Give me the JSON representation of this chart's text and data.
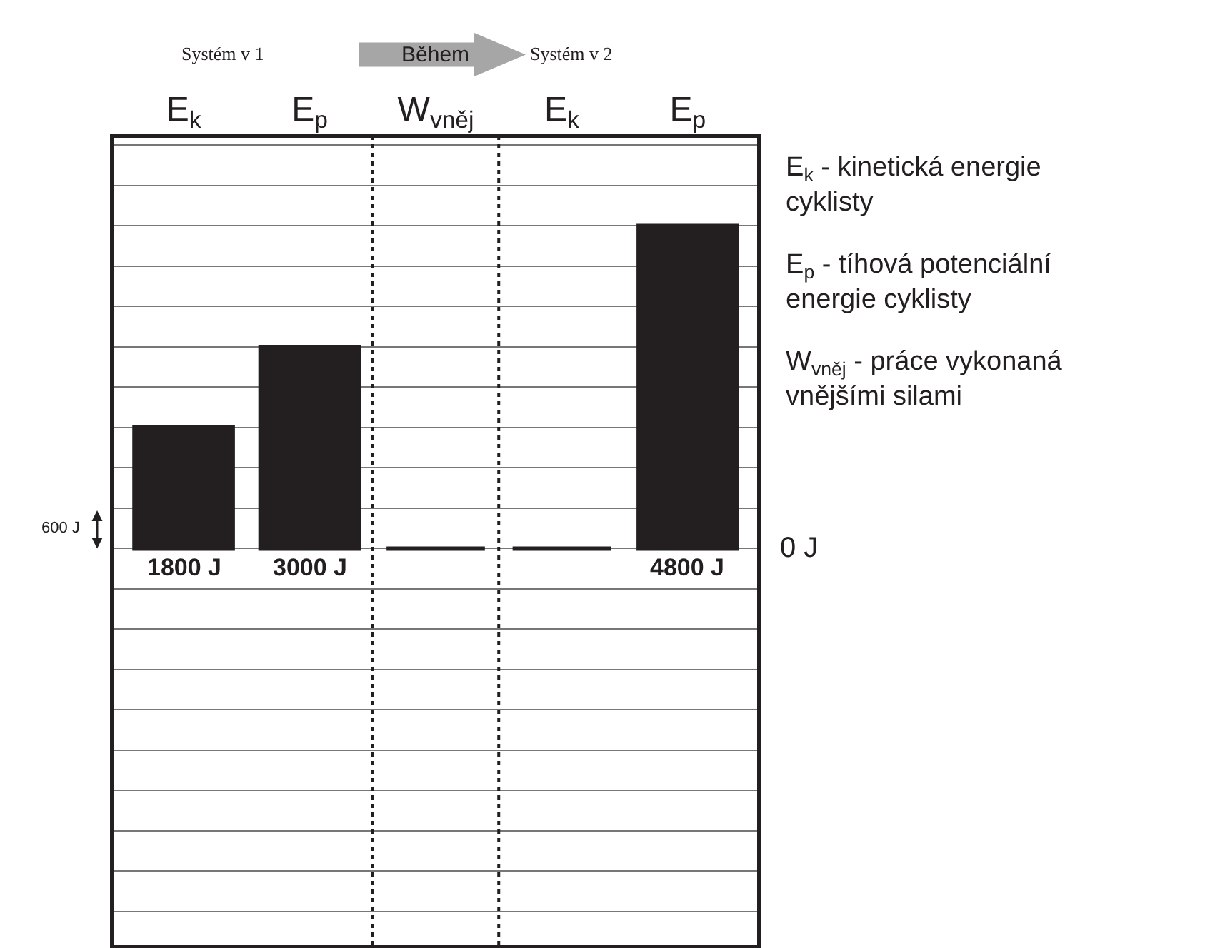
{
  "chart_data": {
    "type": "bar",
    "categories": [
      "E$_{k}$",
      "E$_{p}$",
      "W$_{vněj}$",
      "E$_{k}$",
      "E$_{p}$"
    ],
    "values": [
      1800,
      3000,
      0,
      0,
      4800
    ],
    "color": "#231f20",
    "value_labels": [
      "1800 J",
      "3000 J",
      null,
      null,
      "4800 J"
    ],
    "ylim": [
      -5900,
      6100
    ],
    "yticks": [
      {
        "value": -5400,
        "label": null
      },
      {
        "value": -4800,
        "label": null
      },
      {
        "value": -4200,
        "label": null
      },
      {
        "value": -3600,
        "label": null
      },
      {
        "value": -3000,
        "label": null
      },
      {
        "value": -2400,
        "label": null
      },
      {
        "value": -1800,
        "label": null
      },
      {
        "value": -1200,
        "label": null
      },
      {
        "value": -600,
        "label": null
      },
      {
        "value": 0,
        "label": null
      },
      {
        "value": 600,
        "label": null
      },
      {
        "value": 1200,
        "label": null
      },
      {
        "value": 1800,
        "label": null
      },
      {
        "value": 2400,
        "label": null
      },
      {
        "value": 3000,
        "label": null
      },
      {
        "value": 3600,
        "label": null
      },
      {
        "value": 4200,
        "label": null
      },
      {
        "value": 4800,
        "label": null
      },
      {
        "value": 5400,
        "label": null
      },
      {
        "value": 6000,
        "label": null
      }
    ],
    "grid": "y",
    "annotations": [
      "Systém v 1",
      "Během",
      "Systém v 2",
      "600 J",
      "0 J",
      "E$_{k}$ - kinetická energie cyklisty",
      "E$_{p}$ - tíhová potenciální energie cyklisty",
      "W$_{vněj}$ - práce vykonaná vnějšími silami"
    ]
  }
}
